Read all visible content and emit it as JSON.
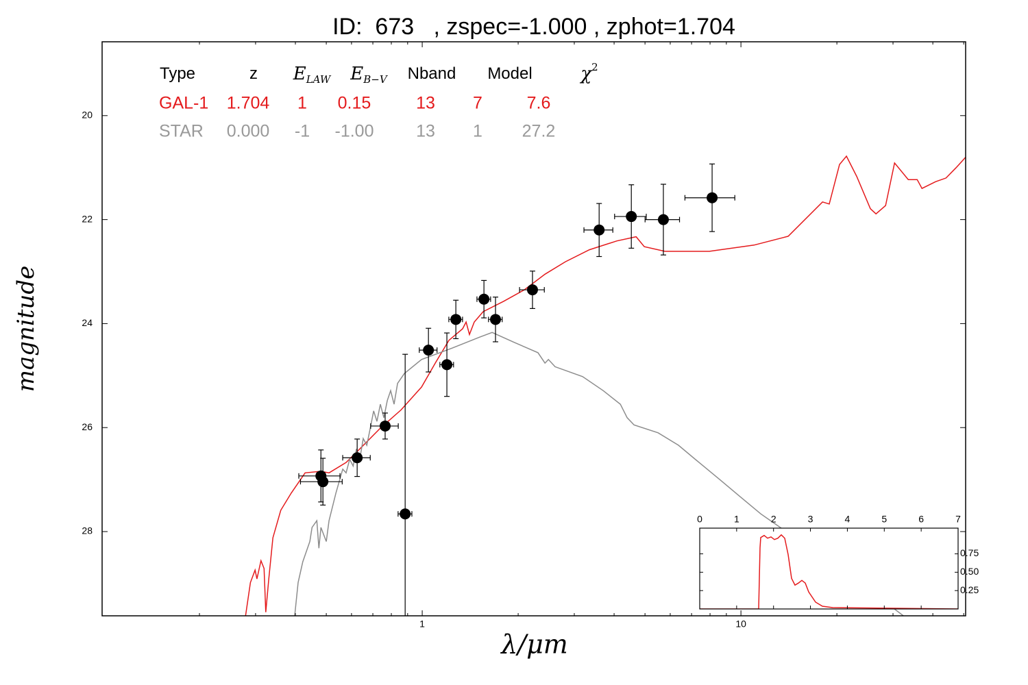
{
  "chart_data": [
    {
      "type": "line",
      "title": "ID:  673   , zspec=-1.000 , zphot=1.704",
      "xlabel": "λ/μm",
      "ylabel": "magnitude",
      "xscale": "log",
      "xlim": [
        0.099,
        50.7
      ],
      "xticks": [
        1,
        10
      ],
      "xminorticks": [
        0.2,
        0.3,
        0.4,
        0.5,
        0.6,
        0.7,
        0.8,
        0.9,
        2,
        3,
        4,
        5,
        6,
        7,
        8,
        9,
        20,
        30,
        40,
        50
      ],
      "ylim": [
        29.62,
        18.58
      ],
      "yticks": [
        20,
        22,
        24,
        26,
        28
      ],
      "series": [
        {
          "type": "line",
          "color": "#e41a1c",
          "x": [
            0.279,
            0.289,
            0.299,
            0.303,
            0.312,
            0.319,
            0.323,
            0.33,
            0.34,
            0.36,
            0.388,
            0.429,
            0.481,
            0.51,
            0.577,
            0.637,
            0.739,
            0.858,
            0.995,
            1.099,
            1.213,
            1.339,
            1.373,
            1.407,
            1.456,
            1.553,
            1.802,
            2.091,
            2.427,
            2.814,
            3.346,
            4.083,
            4.689,
            4.975,
            5.771,
            7.96,
            10.99,
            14.07,
            18.03,
            18.93,
            20.39,
            21.43,
            23.09,
            25.48,
            26.53,
            28.43,
            30.34,
            33.5,
            35.73,
            36.98,
            40.83,
            43.98,
            47.35,
            50.7
          ],
          "values": [
            29.62,
            28.98,
            28.74,
            28.91,
            28.56,
            28.71,
            29.55,
            28.91,
            28.12,
            27.59,
            27.26,
            26.87,
            26.84,
            26.87,
            26.67,
            26.41,
            26.01,
            25.66,
            25.22,
            24.76,
            24.32,
            24.1,
            23.97,
            24.21,
            23.97,
            23.77,
            23.57,
            23.35,
            23.05,
            22.81,
            22.58,
            22.41,
            22.33,
            22.52,
            22.61,
            22.61,
            22.49,
            22.32,
            21.66,
            21.7,
            20.94,
            20.78,
            21.17,
            21.79,
            21.89,
            21.73,
            20.91,
            21.23,
            21.23,
            21.4,
            21.27,
            21.2,
            21.0,
            20.8
          ]
        },
        {
          "type": "line",
          "color": "#8c8c8c",
          "x": [
            0.398,
            0.408,
            0.422,
            0.444,
            0.451,
            0.467,
            0.474,
            0.481,
            0.5,
            0.51,
            0.536,
            0.563,
            0.577,
            0.592,
            0.607,
            0.622,
            0.637,
            0.653,
            0.67,
            0.687,
            0.704,
            0.721,
            0.739,
            0.758,
            0.777,
            0.796,
            0.816,
            0.837,
            0.879,
            0.995,
            1.243,
            1.516,
            1.657,
            1.941,
            2.308,
            2.427,
            2.488,
            2.612,
            3.186,
            3.697,
            4.185,
            4.396,
            4.621,
            5.495,
            6.368,
            7.39,
            8.58,
            9.95,
            11.54,
            14.79,
            29.58,
            32.34
          ],
          "values": [
            29.62,
            28.98,
            28.58,
            28.19,
            27.92,
            27.79,
            28.32,
            27.92,
            28.19,
            27.79,
            27.26,
            26.8,
            26.87,
            26.61,
            26.74,
            26.41,
            26.61,
            26.21,
            26.34,
            26.01,
            25.68,
            25.88,
            25.55,
            25.81,
            25.48,
            25.29,
            25.55,
            25.15,
            24.96,
            24.69,
            24.47,
            24.26,
            24.17,
            24.36,
            24.56,
            24.76,
            24.69,
            24.83,
            25.02,
            25.29,
            25.55,
            25.81,
            25.95,
            26.1,
            26.34,
            26.67,
            27.0,
            27.33,
            27.66,
            28.12,
            29.44,
            29.62
          ]
        },
        {
          "type": "errorbar",
          "color": "#000000",
          "x": [
            0.481,
            0.488,
            0.625,
            0.765,
            0.884,
            1.046,
            1.195,
            1.275,
            1.562,
            1.698,
            2.218,
            3.59,
            4.53,
            5.71,
            8.12
          ],
          "xerr": [
            0.071,
            0.073,
            0.062,
            0.076,
            0.044,
            0.067,
            0.059,
            0.063,
            0.077,
            0.084,
            0.198,
            0.373,
            0.516,
            0.707,
            1.447
          ],
          "values": [
            26.93,
            27.04,
            26.58,
            25.97,
            27.66,
            24.51,
            24.79,
            23.92,
            23.53,
            23.92,
            23.35,
            22.2,
            21.94,
            22.0,
            21.58
          ],
          "yerr": [
            0.5,
            0.45,
            0.36,
            0.25,
            3.07,
            0.42,
            0.61,
            0.37,
            0.36,
            0.43,
            0.36,
            0.51,
            0.61,
            0.68,
            0.65
          ]
        }
      ],
      "table": {
        "columns": [
          {
            "text": "Type"
          },
          {
            "text": "z"
          },
          {
            "text": "E",
            "sub": "LAW"
          },
          {
            "text": "E",
            "sub": "B−V"
          },
          {
            "text": "Nband"
          },
          {
            "text": "Model"
          },
          {
            "text": "χ",
            "sup": "2"
          }
        ],
        "rows": [
          {
            "color": "#e41a1c",
            "cells": [
              "GAL-1",
              "1.704",
              "1",
              "0.15",
              "13",
              "7",
              "7.6"
            ]
          },
          {
            "color": "#999999",
            "cells": [
              "STAR",
              "0.000",
              "-1",
              "-1.00",
              "13",
              "1",
              "27.2"
            ]
          }
        ]
      }
    },
    {
      "type": "line",
      "xlim": [
        0,
        7
      ],
      "xticks": [
        0,
        1,
        2,
        3,
        4,
        5,
        6,
        7
      ],
      "ylim": [
        0,
        1.1
      ],
      "yticks": [
        0.25,
        {
          "value": 0.5,
          "label": "0.50"
        },
        0.75
      ],
      "series": [
        {
          "type": "line",
          "color": "#e41a1c",
          "x": [
            0,
            1.597,
            1.634,
            1.652,
            1.745,
            1.838,
            1.931,
            2.024,
            2.117,
            2.209,
            2.302,
            2.395,
            2.488,
            2.581,
            2.674,
            2.766,
            2.859,
            2.952,
            3.138,
            3.323,
            3.602,
            7.0
          ],
          "values": [
            0,
            0,
            0.833,
            0.972,
            1.0,
            0.963,
            0.981,
            0.944,
            0.963,
            1.009,
            0.963,
            0.741,
            0.417,
            0.324,
            0.352,
            0.389,
            0.352,
            0.231,
            0.093,
            0.037,
            0.019,
            0
          ]
        }
      ]
    }
  ]
}
